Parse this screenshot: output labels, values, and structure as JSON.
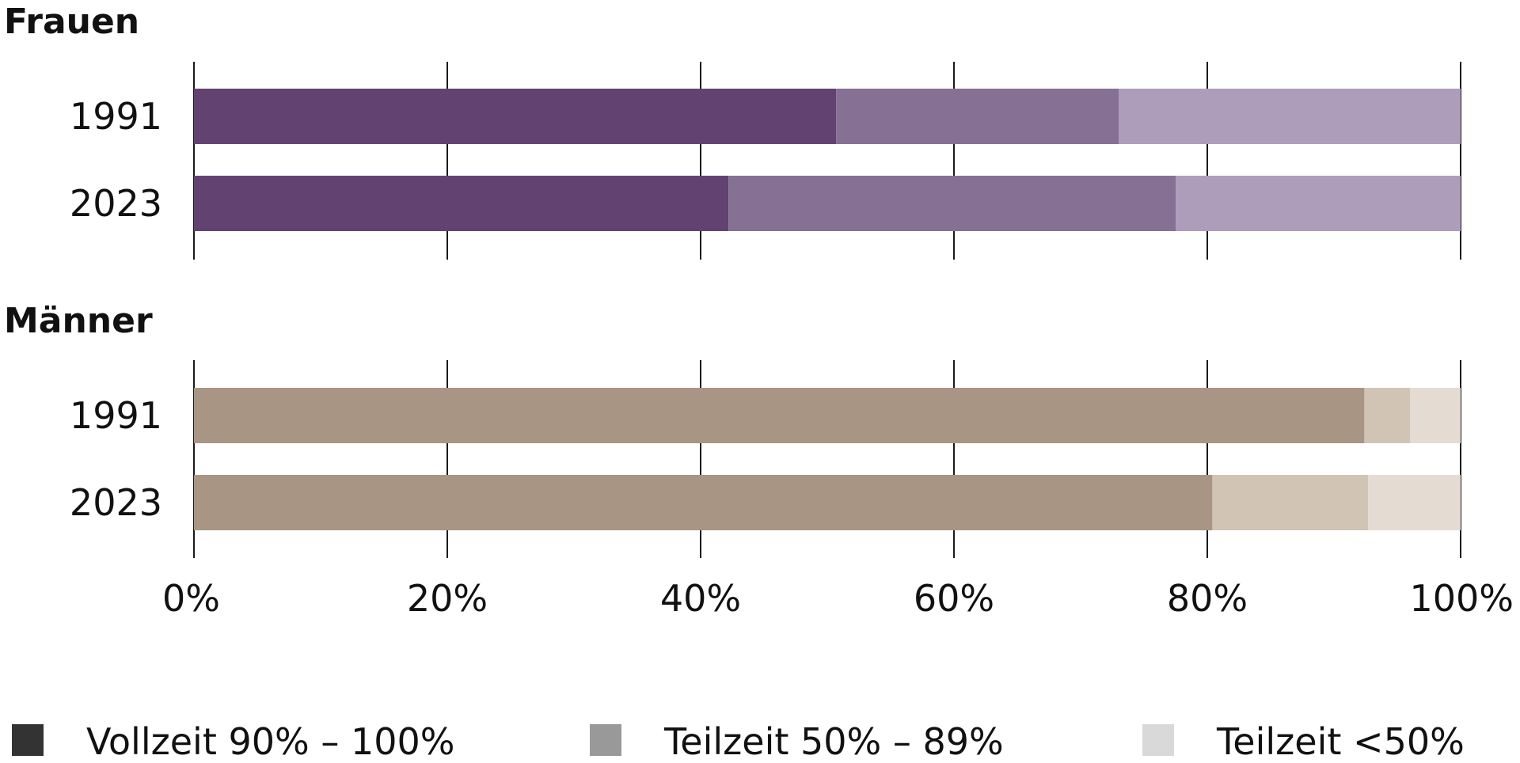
{
  "chart_data": {
    "type": "bar",
    "orientation": "horizontal",
    "stacked": true,
    "xlim": [
      0,
      100
    ],
    "x_ticks": [
      "0%",
      "20%",
      "40%",
      "60%",
      "80%",
      "100%"
    ],
    "legend": [
      {
        "label": "Vollzeit 90% – 100%",
        "color": "#333333"
      },
      {
        "label": "Teilzeit 50% – 89%",
        "color": "#999999"
      },
      {
        "label": "Teilzeit <50%",
        "color": "#d9d9d9"
      }
    ],
    "panels": [
      {
        "title": "Frauen",
        "colors": [
          "#624271",
          "#867094",
          "#ae9dba"
        ],
        "rows": [
          {
            "label": "1991",
            "values": [
              50.7,
              22.3,
              27.0
            ]
          },
          {
            "label": "2023",
            "values": [
              42.2,
              35.3,
              22.5
            ]
          }
        ]
      },
      {
        "title": "Männer",
        "colors": [
          "#a89583",
          "#d1c4b5",
          "#e4dcd2"
        ],
        "rows": [
          {
            "label": "1991",
            "values": [
              92.4,
              3.6,
              4.0
            ]
          },
          {
            "label": "2023",
            "values": [
              80.4,
              12.3,
              7.3
            ]
          }
        ]
      }
    ]
  }
}
